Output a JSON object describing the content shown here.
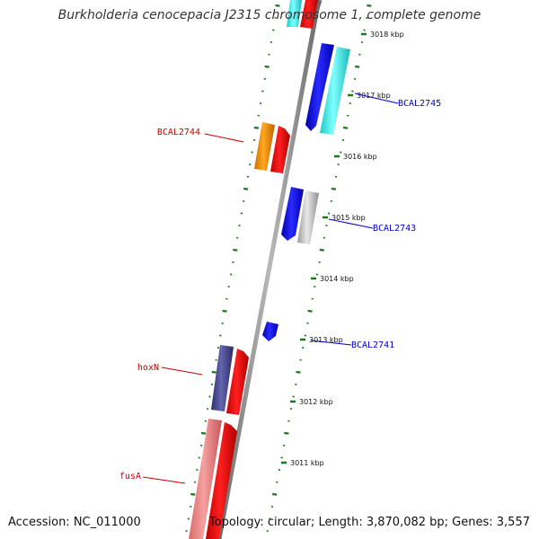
{
  "title": "Burkholderia cenocepacia J2315 chromosome 1, complete genome",
  "accession": "Accession: NC_011000",
  "topology": "Topology: circular; Length: 3,870,082 bp; Genes: 3,557",
  "colors": {
    "backbone": "#8c8c8c",
    "tick": "#1a7a1a",
    "forward_label": "#cc0000",
    "reverse_label": "#0000cc"
  },
  "kbp_labels": [
    "3018 kbp",
    "3017 kbp",
    "3016 kbp",
    "3015 kbp",
    "3014 kbp",
    "3013 kbp",
    "3012 kbp",
    "3011 kbp"
  ],
  "gene_labels": [
    {
      "name": "BCAL2745",
      "strand": "reverse"
    },
    {
      "name": "BCAL2744",
      "strand": "forward"
    },
    {
      "name": "BCAL2743",
      "strand": "reverse"
    },
    {
      "name": "BCAL2741",
      "strand": "reverse"
    },
    {
      "name": "hoxN",
      "strand": "forward"
    },
    {
      "name": "fusA",
      "strand": "forward"
    }
  ]
}
